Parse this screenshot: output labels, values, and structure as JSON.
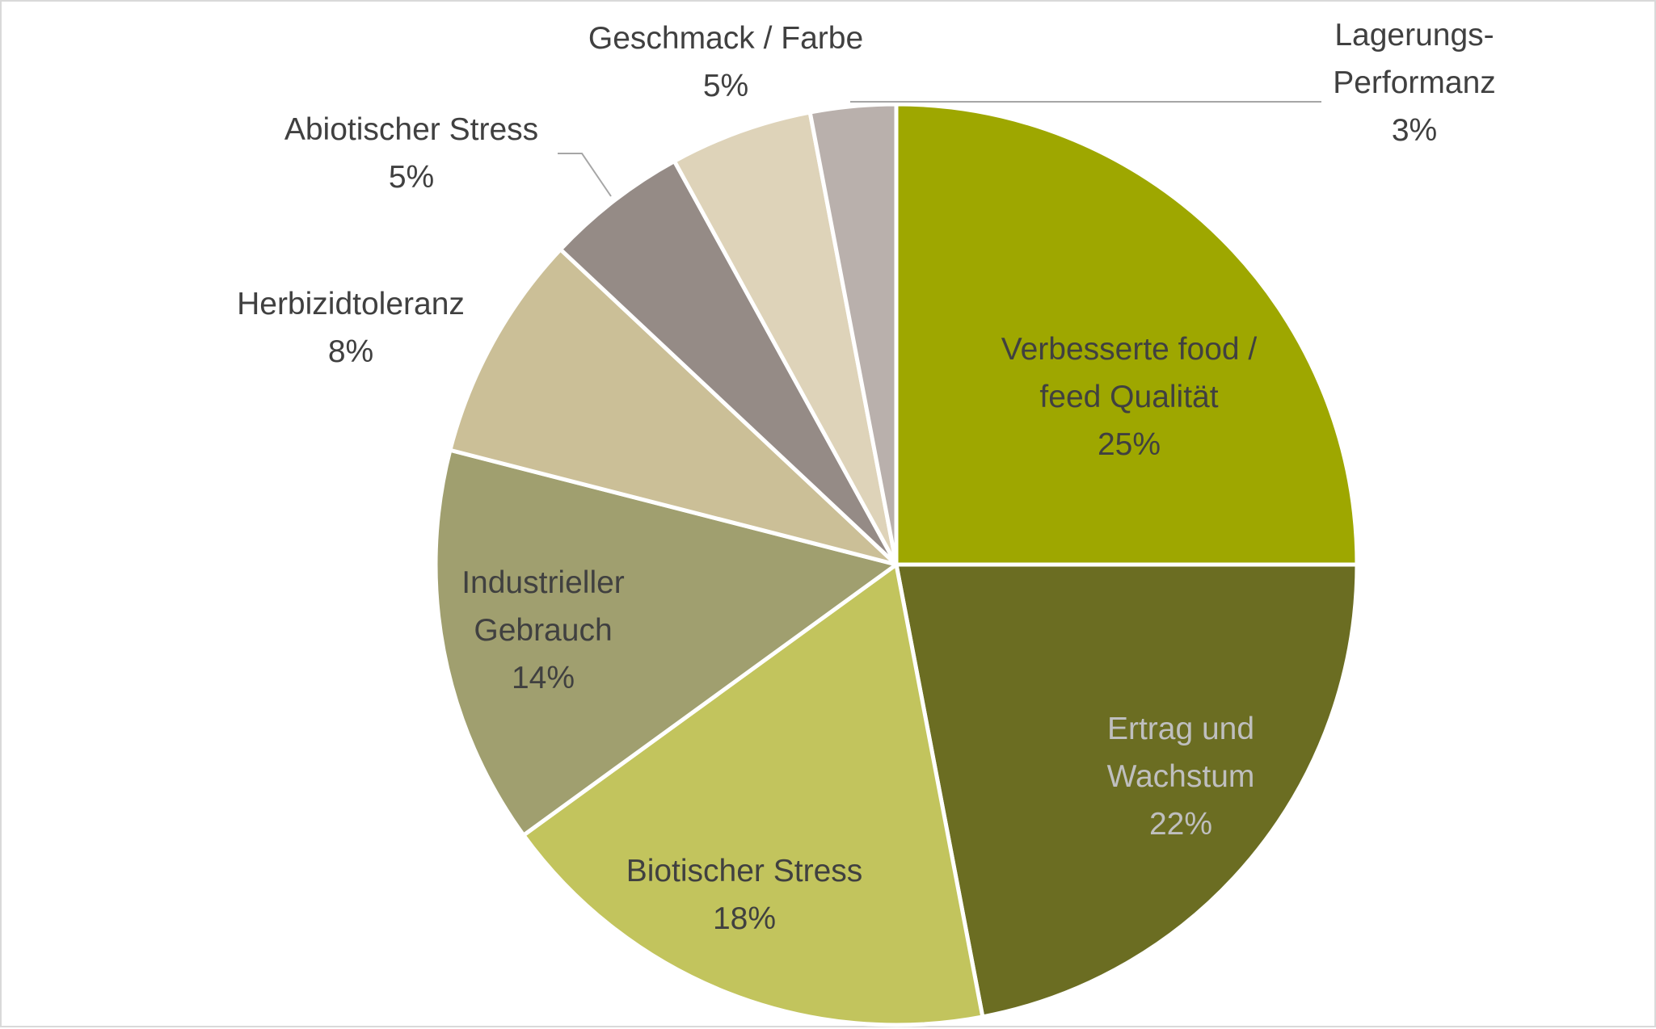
{
  "chart_data": {
    "type": "pie",
    "title": "",
    "start_angle_deg": 0,
    "direction": "clockwise",
    "slices": [
      {
        "label": [
          "Verbesserte food /",
          "feed Qualität"
        ],
        "value": 25,
        "display": "25%",
        "color": "#9ea700",
        "label_color": "#404040",
        "label_position": "inside"
      },
      {
        "label": [
          "Ertrag und",
          "Wachstum"
        ],
        "value": 22,
        "display": "22%",
        "color": "#6b6d22",
        "label_color": "#bfbfbf",
        "label_position": "inside"
      },
      {
        "label": [
          "Biotischer Stress"
        ],
        "value": 18,
        "display": "18%",
        "color": "#c2c45d",
        "label_color": "#404040",
        "label_position": "inside"
      },
      {
        "label": [
          "Industrieller",
          "Gebrauch"
        ],
        "value": 14,
        "display": "14%",
        "color": "#a09f6f",
        "label_color": "#404040",
        "label_position": "inside"
      },
      {
        "label": [
          "Herbizidtoleranz"
        ],
        "value": 8,
        "display": "8%",
        "color": "#cbbf97",
        "label_color": "#404040",
        "label_position": "outside"
      },
      {
        "label": [
          "Abiotischer Stress"
        ],
        "value": 5,
        "display": "5%",
        "color": "#958b86",
        "label_color": "#404040",
        "label_position": "outside"
      },
      {
        "label": [
          "Geschmack / Farbe"
        ],
        "value": 5,
        "display": "5%",
        "color": "#ded3b9",
        "label_color": "#404040",
        "label_position": "outside"
      },
      {
        "label": [
          "Lagerungs-",
          "Performanz"
        ],
        "value": 3,
        "display": "3%",
        "color": "#b9b0ac",
        "label_color": "#404040",
        "label_position": "outside"
      }
    ]
  }
}
